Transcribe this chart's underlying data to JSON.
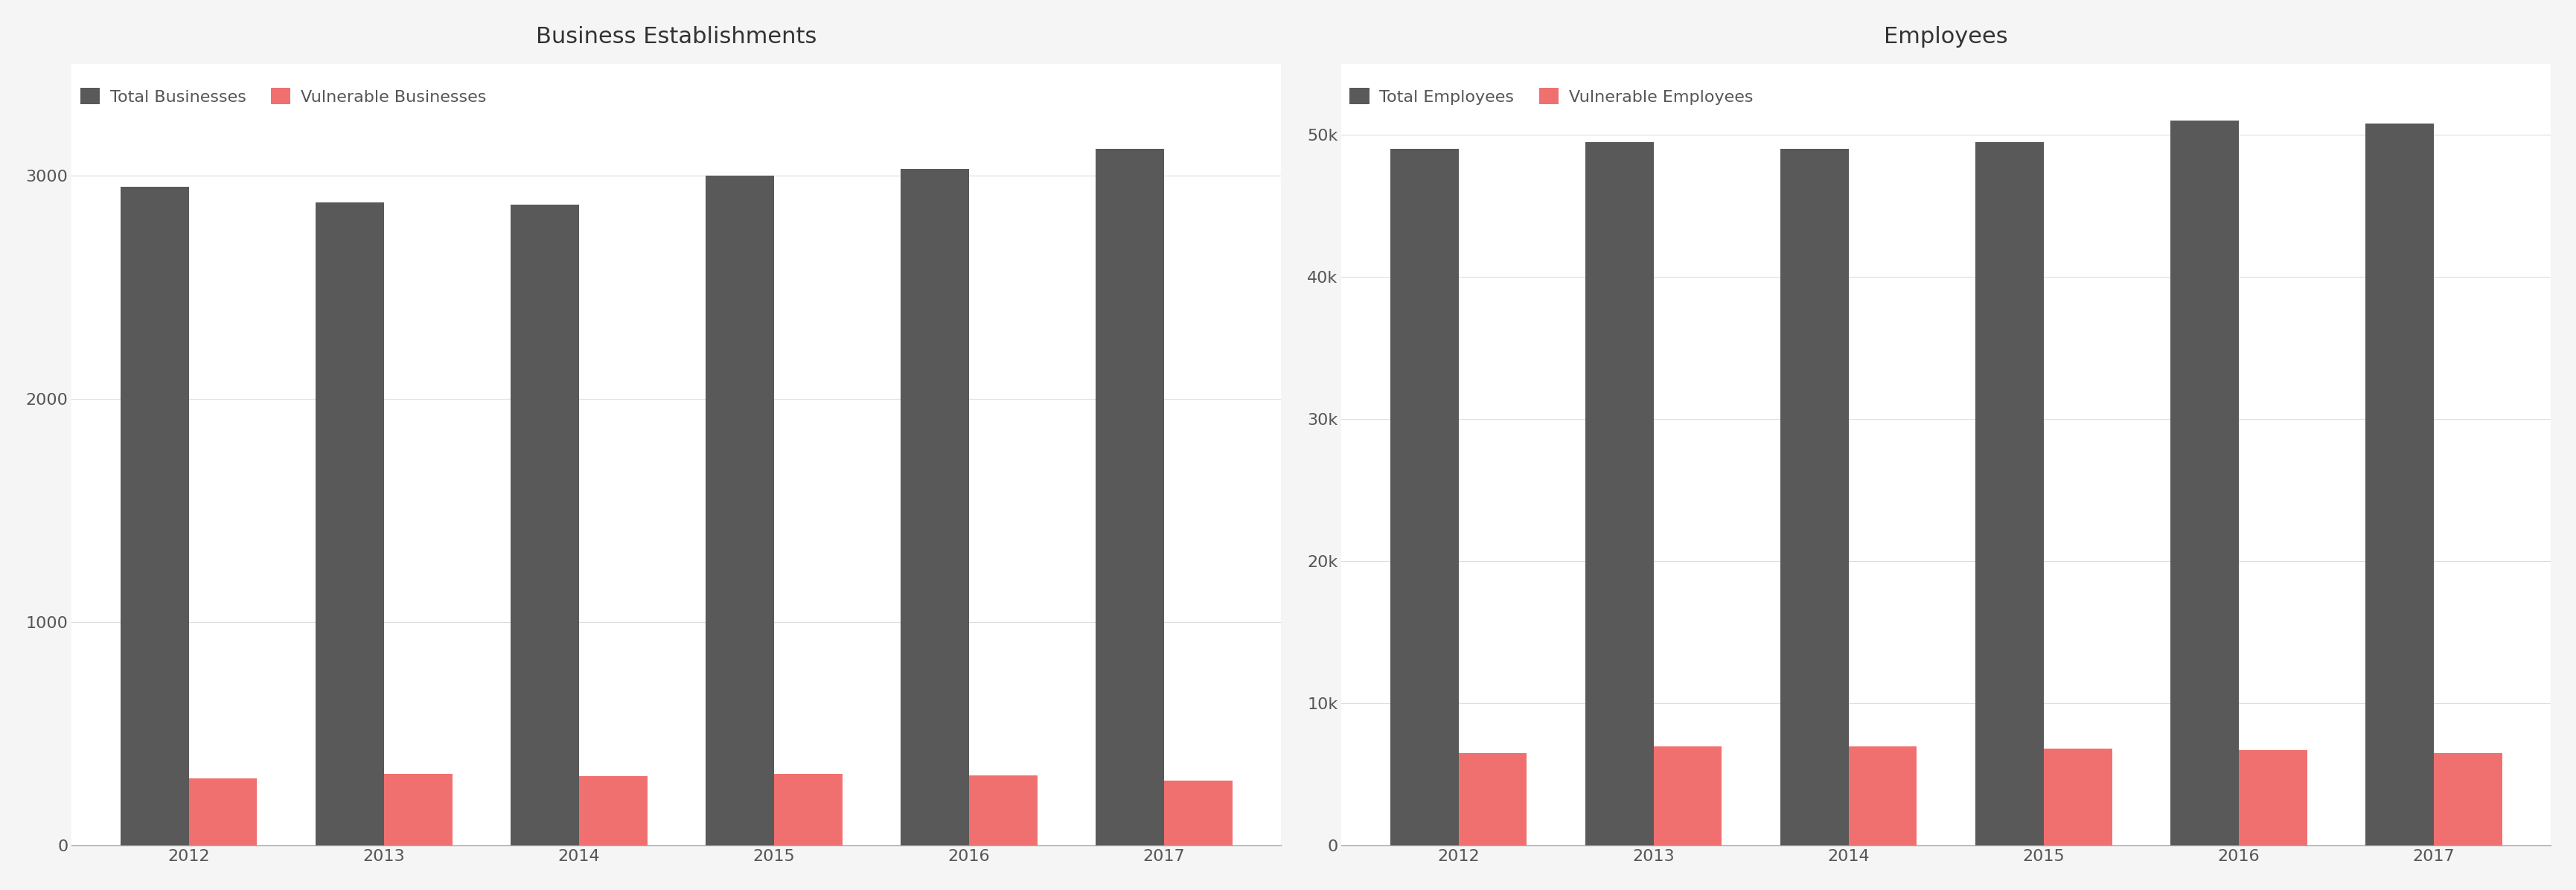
{
  "years": [
    2012,
    2013,
    2014,
    2015,
    2016,
    2017
  ],
  "biz_total": [
    2950,
    2880,
    2870,
    3000,
    3030,
    3120
  ],
  "biz_vuln": [
    300,
    320,
    310,
    320,
    315,
    290
  ],
  "emp_total": [
    49000,
    49500,
    49000,
    49500,
    51000,
    50800
  ],
  "emp_vuln": [
    6500,
    7000,
    7000,
    6800,
    6700,
    6500
  ],
  "total_color": "#595959",
  "vuln_color": "#f07070",
  "bg_color": "#f5f5f5",
  "plot_bg_color": "#ffffff",
  "title_biz": "Business Establishments",
  "title_emp": "Employees",
  "legend_total_biz": "Total Businesses",
  "legend_vuln_biz": "Vulnerable Businesses",
  "legend_total_emp": "Total Employees",
  "legend_vuln_emp": "Vulnerable Employees",
  "title_fontsize": 22,
  "legend_fontsize": 16,
  "tick_fontsize": 16,
  "bar_width": 0.35,
  "biz_ylim": [
    0,
    3500
  ],
  "emp_ylim": [
    0,
    55000
  ]
}
